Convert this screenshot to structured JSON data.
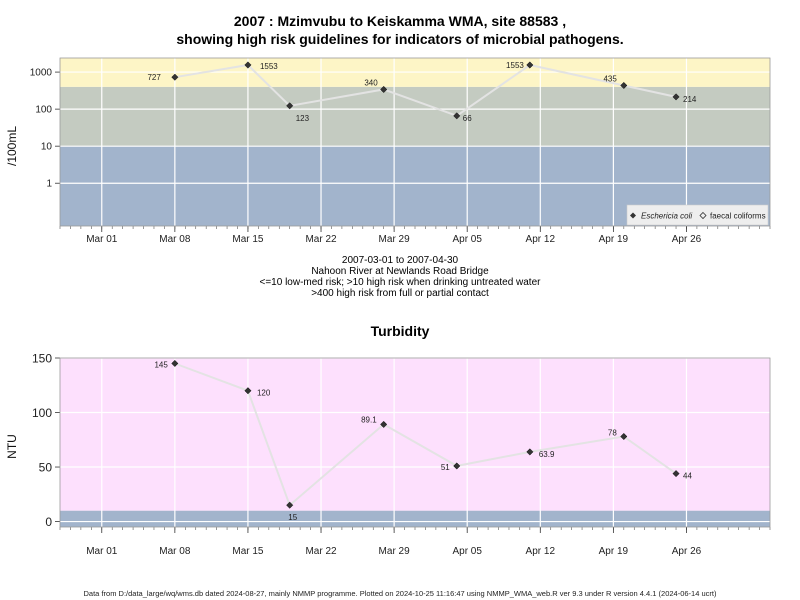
{
  "title": {
    "line1": "2007 : Mzimvubu to Keiskamma WMA, site 88583 ,",
    "line2": "showing high risk guidelines for indicators of microbial pathogens."
  },
  "microbial_subtitle": {
    "line1": "2007-03-01 to 2007-04-30",
    "line2": "Nahoon River at Newlands Road Bridge",
    "line3": "<=10 low-med risk; >10 high risk when drinking untreated water",
    "line4": ">400 high risk from full or partial contact"
  },
  "turbidity_title": "Turbidity",
  "footer": "Data from D:/data_large/wq/wms.db dated 2024-08-27, mainly NMMP programme. Plotted on 2024-10-25 11:16:47 using NMMP_WMA_web.R ver 9.3 under R version 4.4.1 (2024-06-14 ucrt)",
  "colors": {
    "low_band": "#a2b4cc",
    "mid_band": "#c4cbc1",
    "high_band": "#fdf5c6",
    "turbidity_bg": "#fde0fd",
    "grid": "#ffffff",
    "line": "#e3e3e3",
    "marker": "#333333"
  },
  "chart_data": [
    {
      "type": "line",
      "title": "2007 : Mzimvubu to Keiskamma WMA, site 88583 ,",
      "ylabel": "/100mL",
      "yscale": "log",
      "x_ticks": [
        "Mar 01",
        "Mar 08",
        "Mar 15",
        "Mar 22",
        "Mar 29",
        "Apr 05",
        "Apr 12",
        "Apr 19",
        "Apr 26"
      ],
      "y_ticks": [
        "1",
        "10",
        "100",
        "1000"
      ],
      "xlim": [
        "2007-02-25",
        "2007-05-04"
      ],
      "ylim": [
        0.07,
        2400
      ],
      "bands": [
        {
          "from": 0.07,
          "to": 10,
          "color": "#a2b4cc"
        },
        {
          "from": 10,
          "to": 400,
          "color": "#c4cbc1"
        },
        {
          "from": 400,
          "to": 2400,
          "color": "#fdf5c6"
        }
      ],
      "legend": {
        "position": "bottom-right",
        "entries": [
          "Eschericia coli",
          "faecal coliforms"
        ]
      },
      "series": [
        {
          "name": "Eschericia coli",
          "x": [
            "2007-03-08",
            "2007-03-15",
            "2007-03-19",
            "2007-03-28",
            "2007-04-04",
            "2007-04-11",
            "2007-04-20",
            "2007-04-25"
          ],
          "values": [
            727,
            1553,
            123,
            340,
            66,
            1553,
            435,
            214
          ],
          "labels": [
            "727",
            "1553",
            "123",
            "340",
            "66",
            "1553",
            "435",
            "214"
          ]
        }
      ]
    },
    {
      "type": "line",
      "title": "Turbidity",
      "ylabel": "NTU",
      "x_ticks": [
        "Mar 01",
        "Mar 08",
        "Mar 15",
        "Mar 22",
        "Mar 29",
        "Apr 05",
        "Apr 12",
        "Apr 19",
        "Apr 26"
      ],
      "y_ticks": [
        "0",
        "50",
        "100",
        "150"
      ],
      "xlim": [
        "2007-02-25",
        "2007-05-04"
      ],
      "ylim": [
        -5,
        150
      ],
      "bands": [
        {
          "from": -5,
          "to": 10,
          "color": "#a2b4cc"
        },
        {
          "from": 10,
          "to": 150,
          "color": "#fde0fd"
        }
      ],
      "series": [
        {
          "x": [
            "2007-03-08",
            "2007-03-15",
            "2007-03-19",
            "2007-03-28",
            "2007-04-04",
            "2007-04-11",
            "2007-04-20",
            "2007-04-25"
          ],
          "values": [
            145,
            120,
            15,
            89.1,
            51,
            63.9,
            78,
            44
          ],
          "labels": [
            "145",
            "120",
            "15",
            "89.1",
            "51",
            "63.9",
            "78",
            "44"
          ]
        }
      ]
    }
  ]
}
